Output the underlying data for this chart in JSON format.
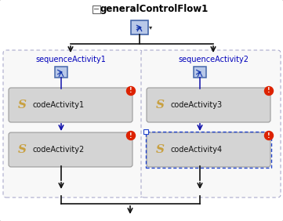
{
  "title": "generalControlFlow1",
  "title_color": "#000000",
  "title_fontsize": 8.5,
  "bg_color": "#ffffff",
  "seq1_label": "sequenceActivity1",
  "seq2_label": "sequenceActivity2",
  "seq_label_color": "#0000bb",
  "seq_label_fontsize": 7,
  "code_labels": [
    "codeActivity1",
    "codeActivity2",
    "codeActivity3",
    "codeActivity4"
  ],
  "code_label_fontsize": 7,
  "code_bg_top": "#e0e0e0",
  "code_bg_bot": "#c0c0c0",
  "code_border": "#999999",
  "arrow_dark": "#111111",
  "blue_arrow": "#1111aa",
  "seq_box_border": "#aaaacc",
  "icon_fill": "#b8c8e8",
  "icon_border": "#4466aa",
  "icon_inner": "#1133aa",
  "error_color": "#dd2200",
  "dashed_sel": "#2244cc",
  "minus_color": "#333333",
  "outer_border": "#aaaaaa"
}
